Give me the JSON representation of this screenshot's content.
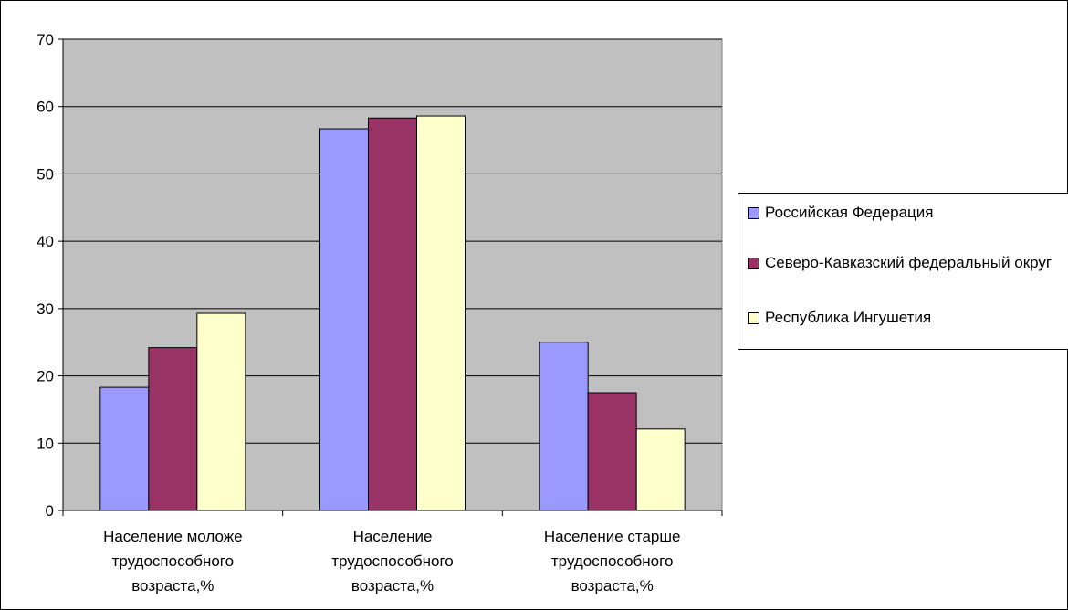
{
  "chart_data": {
    "type": "bar",
    "title": "",
    "xlabel": "",
    "ylabel": "",
    "ylim": [
      0,
      70
    ],
    "yticks": [
      0,
      10,
      20,
      30,
      40,
      50,
      60,
      70
    ],
    "grid": true,
    "legend_placement": "right",
    "plot_background": "#c0c0c0",
    "categories": [
      [
        "Население моложе",
        "трудоспособного",
        "возраста,%"
      ],
      [
        "Население",
        "трудоспособного",
        "возраста,%"
      ],
      [
        "Население старше",
        "трудоспособного",
        "возраста,%"
      ]
    ],
    "series": [
      {
        "name": "Российская Федерация",
        "color": "#9999ff",
        "values": [
          18.3,
          56.7,
          25.0
        ]
      },
      {
        "name": "Северо-Кавказский федеральный округ",
        "color": "#993366",
        "values": [
          24.2,
          58.3,
          17.5
        ]
      },
      {
        "name": "Республика Ингушетия",
        "color": "#ffffcc",
        "values": [
          29.3,
          58.6,
          12.1
        ]
      }
    ]
  },
  "legend": {
    "items": [
      {
        "label": "Российская Федерация",
        "color": "#9999ff"
      },
      {
        "label": "Северо-Кавказский федеральный округ",
        "color": "#993366"
      },
      {
        "label": "Республика Ингушетия",
        "color": "#ffffcc"
      }
    ]
  }
}
